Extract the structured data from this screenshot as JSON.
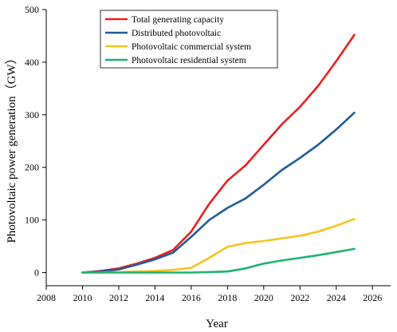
{
  "chart_data": {
    "type": "line",
    "title": "",
    "xlabel": "Year",
    "ylabel": "Photovoltaic power generation（GW）",
    "xlim": [
      2008,
      2027
    ],
    "ylim": [
      -25,
      500
    ],
    "xticks": [
      2008,
      2010,
      2012,
      2014,
      2016,
      2018,
      2020,
      2022,
      2024,
      2026
    ],
    "yticks": [
      0,
      100,
      200,
      300,
      400,
      500
    ],
    "grid": false,
    "legend_position": "top-left",
    "series": [
      {
        "name": "Total generating capacity",
        "color": "#e8201c",
        "points": [
          [
            2010,
            0
          ],
          [
            2011,
            3
          ],
          [
            2012,
            8
          ],
          [
            2013,
            17
          ],
          [
            2014,
            28
          ],
          [
            2015,
            43
          ],
          [
            2016,
            78
          ],
          [
            2017,
            131
          ],
          [
            2018,
            175
          ],
          [
            2019,
            204
          ],
          [
            2020,
            243
          ],
          [
            2021,
            282
          ],
          [
            2022,
            315
          ],
          [
            2023,
            355
          ],
          [
            2024,
            402
          ],
          [
            2025,
            452
          ]
        ]
      },
      {
        "name": "Distributed photovoltaic",
        "color": "#1f5b99",
        "points": [
          [
            2010,
            0
          ],
          [
            2011,
            2
          ],
          [
            2012,
            6
          ],
          [
            2013,
            15
          ],
          [
            2014,
            25
          ],
          [
            2015,
            38
          ],
          [
            2016,
            68
          ],
          [
            2017,
            100
          ],
          [
            2018,
            123
          ],
          [
            2019,
            141
          ],
          [
            2020,
            167
          ],
          [
            2021,
            195
          ],
          [
            2022,
            218
          ],
          [
            2023,
            243
          ],
          [
            2024,
            272
          ],
          [
            2025,
            304
          ]
        ]
      },
      {
        "name": "Photovoltaic commercial system",
        "color": "#f6c41c",
        "points": [
          [
            2010,
            0
          ],
          [
            2011,
            0
          ],
          [
            2012,
            1
          ],
          [
            2013,
            2
          ],
          [
            2014,
            3
          ],
          [
            2015,
            5
          ],
          [
            2016,
            9
          ],
          [
            2017,
            28
          ],
          [
            2018,
            49
          ],
          [
            2019,
            56
          ],
          [
            2020,
            60
          ],
          [
            2021,
            65
          ],
          [
            2022,
            70
          ],
          [
            2023,
            78
          ],
          [
            2024,
            89
          ],
          [
            2025,
            102
          ]
        ]
      },
      {
        "name": "Photovoltaic residential system",
        "color": "#1db36b",
        "points": [
          [
            2010,
            0
          ],
          [
            2011,
            0
          ],
          [
            2012,
            0
          ],
          [
            2013,
            0
          ],
          [
            2014,
            0
          ],
          [
            2015,
            0
          ],
          [
            2016,
            0
          ],
          [
            2017,
            1
          ],
          [
            2018,
            2
          ],
          [
            2019,
            8
          ],
          [
            2020,
            17
          ],
          [
            2021,
            23
          ],
          [
            2022,
            28
          ],
          [
            2023,
            33
          ],
          [
            2024,
            39
          ],
          [
            2025,
            45
          ]
        ]
      }
    ]
  }
}
